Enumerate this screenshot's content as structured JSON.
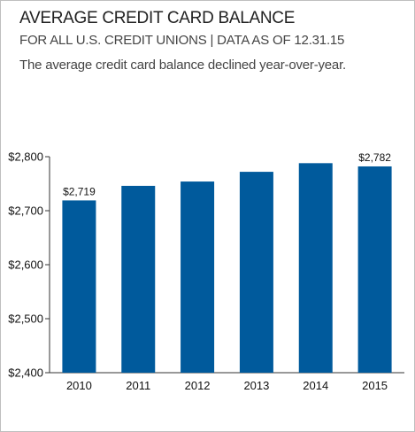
{
  "header": {
    "title": "AVERAGE CREDIT CARD BALANCE",
    "subtitle": "FOR ALL U.S. CREDIT UNIONS | DATA AS OF 12.31.15",
    "note": "The average credit card balance declined year-over-year."
  },
  "colors": {
    "bar": "#005a9c",
    "axis": "#333333"
  },
  "chart_data": {
    "type": "bar",
    "categories": [
      "2010",
      "2011",
      "2012",
      "2013",
      "2014",
      "2015"
    ],
    "values": [
      2719,
      2746,
      2754,
      2772,
      2788,
      2782
    ],
    "data_labels": [
      "$2,719",
      "",
      "",
      "",
      "",
      "$2,782"
    ],
    "yticks": [
      2400,
      2500,
      2600,
      2700,
      2800
    ],
    "ytick_labels": [
      "$2,400",
      "$2,500",
      "$2,600",
      "$2,700",
      "$2,800"
    ],
    "ylim": [
      2400,
      2800
    ],
    "grid": false,
    "legend": "none"
  }
}
